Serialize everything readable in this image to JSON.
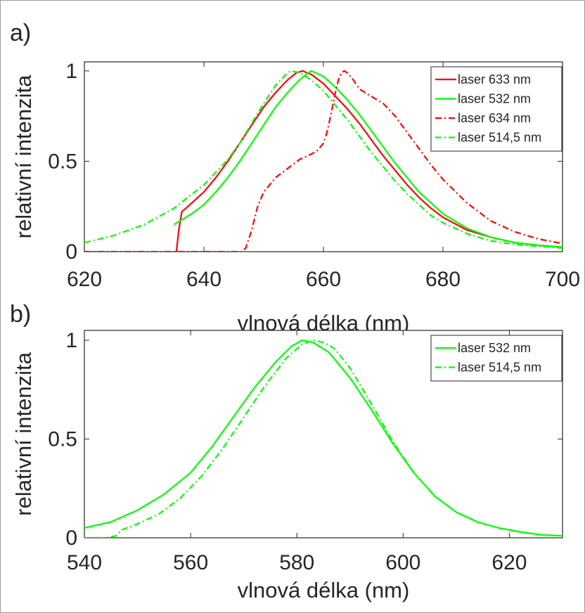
{
  "chart_data": [
    {
      "type": "line",
      "panel_label": "a)",
      "xlabel": "vlnová délka (nm)",
      "ylabel": "relativní intenzita",
      "xlim": [
        620,
        700
      ],
      "ylim": [
        0,
        1.05
      ],
      "xticks": [
        "620",
        "640",
        "660",
        "680",
        "700"
      ],
      "yticks": [
        "0",
        "0.5",
        "1"
      ],
      "grid": false,
      "legend": "top-right",
      "series": [
        {
          "name": "laser 633 nm",
          "color": "#ff0000",
          "style": "solid",
          "points": [
            [
              635.4,
              0
            ],
            [
              635.8,
              0.12
            ],
            [
              636.3,
              0.22
            ],
            [
              638,
              0.27
            ],
            [
              640,
              0.33
            ],
            [
              642,
              0.41
            ],
            [
              644,
              0.5
            ],
            [
              646,
              0.6
            ],
            [
              648,
              0.7
            ],
            [
              650,
              0.8
            ],
            [
              652,
              0.88
            ],
            [
              654,
              0.95
            ],
            [
              655.5,
              0.99
            ],
            [
              656.5,
              1.0
            ],
            [
              658,
              0.98
            ],
            [
              660,
              0.93
            ],
            [
              662,
              0.86
            ],
            [
              664,
              0.79
            ],
            [
              666,
              0.71
            ],
            [
              668,
              0.62
            ],
            [
              670,
              0.53
            ],
            [
              672,
              0.45
            ],
            [
              674,
              0.37
            ],
            [
              676,
              0.3
            ],
            [
              678,
              0.24
            ],
            [
              680,
              0.19
            ],
            [
              684,
              0.12
            ],
            [
              688,
              0.08
            ],
            [
              692,
              0.05
            ],
            [
              696,
              0.035
            ],
            [
              700,
              0.025
            ]
          ]
        },
        {
          "name": "laser 532 nm",
          "color": "#00ff00",
          "style": "solid",
          "points": [
            [
              635,
              0.15
            ],
            [
              638,
              0.21
            ],
            [
              640,
              0.26
            ],
            [
              642,
              0.33
            ],
            [
              644,
              0.41
            ],
            [
              646,
              0.5
            ],
            [
              648,
              0.6
            ],
            [
              650,
              0.7
            ],
            [
              652,
              0.8
            ],
            [
              654,
              0.88
            ],
            [
              656,
              0.95
            ],
            [
              657.5,
              0.99
            ],
            [
              658,
              1.0
            ],
            [
              660,
              0.97
            ],
            [
              662,
              0.91
            ],
            [
              664,
              0.84
            ],
            [
              666,
              0.76
            ],
            [
              668,
              0.67
            ],
            [
              670,
              0.58
            ],
            [
              672,
              0.49
            ],
            [
              674,
              0.41
            ],
            [
              676,
              0.33
            ],
            [
              678,
              0.27
            ],
            [
              680,
              0.21
            ],
            [
              684,
              0.13
            ],
            [
              688,
              0.08
            ],
            [
              692,
              0.05
            ],
            [
              696,
              0.035
            ],
            [
              700,
              0.025
            ]
          ]
        },
        {
          "name": "laser 634 nm",
          "color": "#ff0000",
          "style": "dashdot",
          "points": [
            [
              620,
              0
            ],
            [
              646.3,
              0
            ],
            [
              647,
              0.02
            ],
            [
              648,
              0.12
            ],
            [
              649,
              0.25
            ],
            [
              650,
              0.33
            ],
            [
              651,
              0.37
            ],
            [
              652,
              0.41
            ],
            [
              654,
              0.46
            ],
            [
              656,
              0.51
            ],
            [
              658,
              0.54
            ],
            [
              659,
              0.56
            ],
            [
              660,
              0.6
            ],
            [
              660.5,
              0.65
            ],
            [
              661,
              0.72
            ],
            [
              661.5,
              0.8
            ],
            [
              662,
              0.88
            ],
            [
              662.5,
              0.95
            ],
            [
              663,
              0.99
            ],
            [
              663.5,
              1.0
            ],
            [
              664,
              0.99
            ],
            [
              665,
              0.95
            ],
            [
              666,
              0.9
            ],
            [
              668,
              0.86
            ],
            [
              670,
              0.82
            ],
            [
              672,
              0.75
            ],
            [
              674,
              0.66
            ],
            [
              676,
              0.57
            ],
            [
              678,
              0.48
            ],
            [
              680,
              0.4
            ],
            [
              684,
              0.27
            ],
            [
              688,
              0.17
            ],
            [
              692,
              0.11
            ],
            [
              696,
              0.07
            ],
            [
              700,
              0.045
            ]
          ]
        },
        {
          "name": "laser 514,5 nm",
          "color": "#00ff00",
          "style": "dashdot",
          "points": [
            [
              620,
              0.05
            ],
            [
              625,
              0.09
            ],
            [
              630,
              0.15
            ],
            [
              635,
              0.24
            ],
            [
              640,
              0.37
            ],
            [
              644,
              0.51
            ],
            [
              646,
              0.6
            ],
            [
              648,
              0.71
            ],
            [
              650,
              0.82
            ],
            [
              652,
              0.92
            ],
            [
              654,
              0.99
            ],
            [
              654.5,
              1.0
            ],
            [
              656,
              0.99
            ],
            [
              658,
              0.95
            ],
            [
              660,
              0.89
            ],
            [
              662,
              0.81
            ],
            [
              664,
              0.73
            ],
            [
              666,
              0.64
            ],
            [
              668,
              0.55
            ],
            [
              670,
              0.47
            ],
            [
              672,
              0.39
            ],
            [
              674,
              0.32
            ],
            [
              676,
              0.26
            ],
            [
              678,
              0.2
            ],
            [
              680,
              0.16
            ],
            [
              684,
              0.1
            ],
            [
              688,
              0.06
            ],
            [
              692,
              0.04
            ],
            [
              696,
              0.03
            ],
            [
              700,
              0.02
            ]
          ]
        }
      ]
    },
    {
      "type": "line",
      "panel_label": "b)",
      "xlabel": "vlnová délka (nm)",
      "ylabel": "relativní intenzita",
      "xlim": [
        540,
        630
      ],
      "ylim": [
        0,
        1.05
      ],
      "xticks": [
        "540",
        "560",
        "580",
        "600",
        "620"
      ],
      "yticks": [
        "0",
        "0.5",
        "1"
      ],
      "grid": false,
      "legend": "top-right",
      "series": [
        {
          "name": "laser 532 nm",
          "color": "#00ff00",
          "style": "solid",
          "points": [
            [
              540,
              0.05
            ],
            [
              545,
              0.08
            ],
            [
              550,
              0.14
            ],
            [
              555,
              0.22
            ],
            [
              560,
              0.33
            ],
            [
              564,
              0.46
            ],
            [
              568,
              0.61
            ],
            [
              572,
              0.76
            ],
            [
              576,
              0.89
            ],
            [
              579,
              0.97
            ],
            [
              581,
              1.0
            ],
            [
              583,
              0.99
            ],
            [
              586,
              0.94
            ],
            [
              590,
              0.81
            ],
            [
              594,
              0.65
            ],
            [
              598,
              0.48
            ],
            [
              602,
              0.33
            ],
            [
              606,
              0.21
            ],
            [
              610,
              0.13
            ],
            [
              614,
              0.08
            ],
            [
              618,
              0.05
            ],
            [
              622,
              0.03
            ],
            [
              626,
              0.015
            ],
            [
              630,
              0.01
            ]
          ]
        },
        {
          "name": "laser 514,5 nm",
          "color": "#00ff00",
          "style": "dashdot",
          "points": [
            [
              540,
              0
            ],
            [
              544,
              0
            ],
            [
              546,
              0.01
            ],
            [
              547,
              0.04
            ],
            [
              550,
              0.07
            ],
            [
              554,
              0.12
            ],
            [
              558,
              0.2
            ],
            [
              562,
              0.31
            ],
            [
              566,
              0.45
            ],
            [
              570,
              0.61
            ],
            [
              574,
              0.77
            ],
            [
              578,
              0.91
            ],
            [
              581,
              0.98
            ],
            [
              583,
              1.0
            ],
            [
              585,
              0.99
            ],
            [
              587,
              0.96
            ],
            [
              590,
              0.86
            ],
            [
              594,
              0.68
            ],
            [
              598,
              0.49
            ],
            [
              602,
              0.33
            ],
            [
              606,
              0.21
            ],
            [
              610,
              0.13
            ],
            [
              614,
              0.08
            ],
            [
              618,
              0.05
            ],
            [
              622,
              0.03
            ],
            [
              626,
              0.015
            ],
            [
              630,
              0.01
            ]
          ]
        }
      ]
    }
  ]
}
